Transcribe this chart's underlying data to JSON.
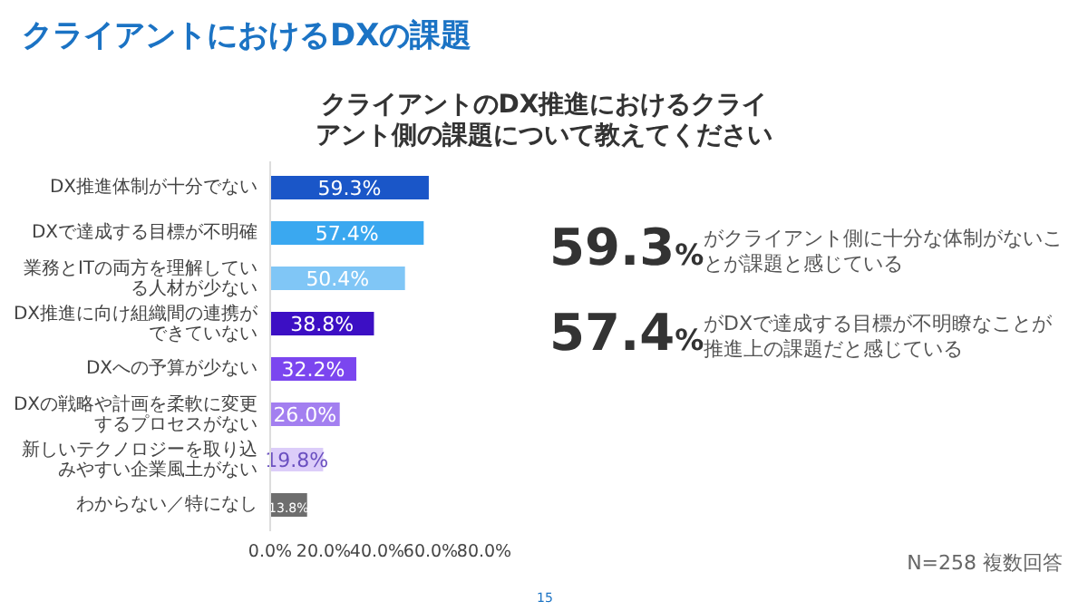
{
  "chart_data": {
    "type": "bar",
    "orientation": "horizontal",
    "title": "クライアントにおけるDXの課題",
    "subtitle": "クライアントのDX推進におけるクライアント側の課題について教えてください",
    "categories": [
      "DX推進体制が十分でない",
      "DXで達成する目標が不明確",
      "業務とITの両方を理解している人材が少ない",
      "DX推進に向け組織間の連携ができていない",
      "DXへの予算が少ない",
      "DXの戦略や計画を柔軟に変更するプロセスがない",
      "新しいテクノロジーを取り込みやすい企業風土がない",
      "わからない／特になし"
    ],
    "values": [
      59.3,
      57.4,
      50.4,
      38.8,
      32.2,
      26.0,
      19.8,
      13.8
    ],
    "colors": [
      "#1a56c8",
      "#3aa8f0",
      "#80c6f6",
      "#3c0fc4",
      "#7b46ef",
      "#a37ff0",
      "#dccdf9",
      "#6e6e6e"
    ],
    "value_labels": [
      "59.3%",
      "57.4%",
      "50.4%",
      "38.8%",
      "32.2%",
      "26.0%",
      "19.8%",
      "13.8%"
    ],
    "xlim": [
      0,
      80
    ],
    "xticks": [
      {
        "value": 0,
        "label": "0.0%"
      },
      {
        "value": 20,
        "label": "20.0%"
      },
      {
        "value": 40,
        "label": "40.0%"
      },
      {
        "value": 60,
        "label": "60.0%"
      },
      {
        "value": 80,
        "label": "80.0%"
      }
    ],
    "grid": false,
    "annotations": [
      "59.3%",
      "がクライアント側に十分な体制がないことが課題と感じている",
      "57.4%",
      "がDXで達成する目標が不明瞭なことが推進上の課題だと感じている",
      "N=258 複数回答",
      "15"
    ]
  }
}
